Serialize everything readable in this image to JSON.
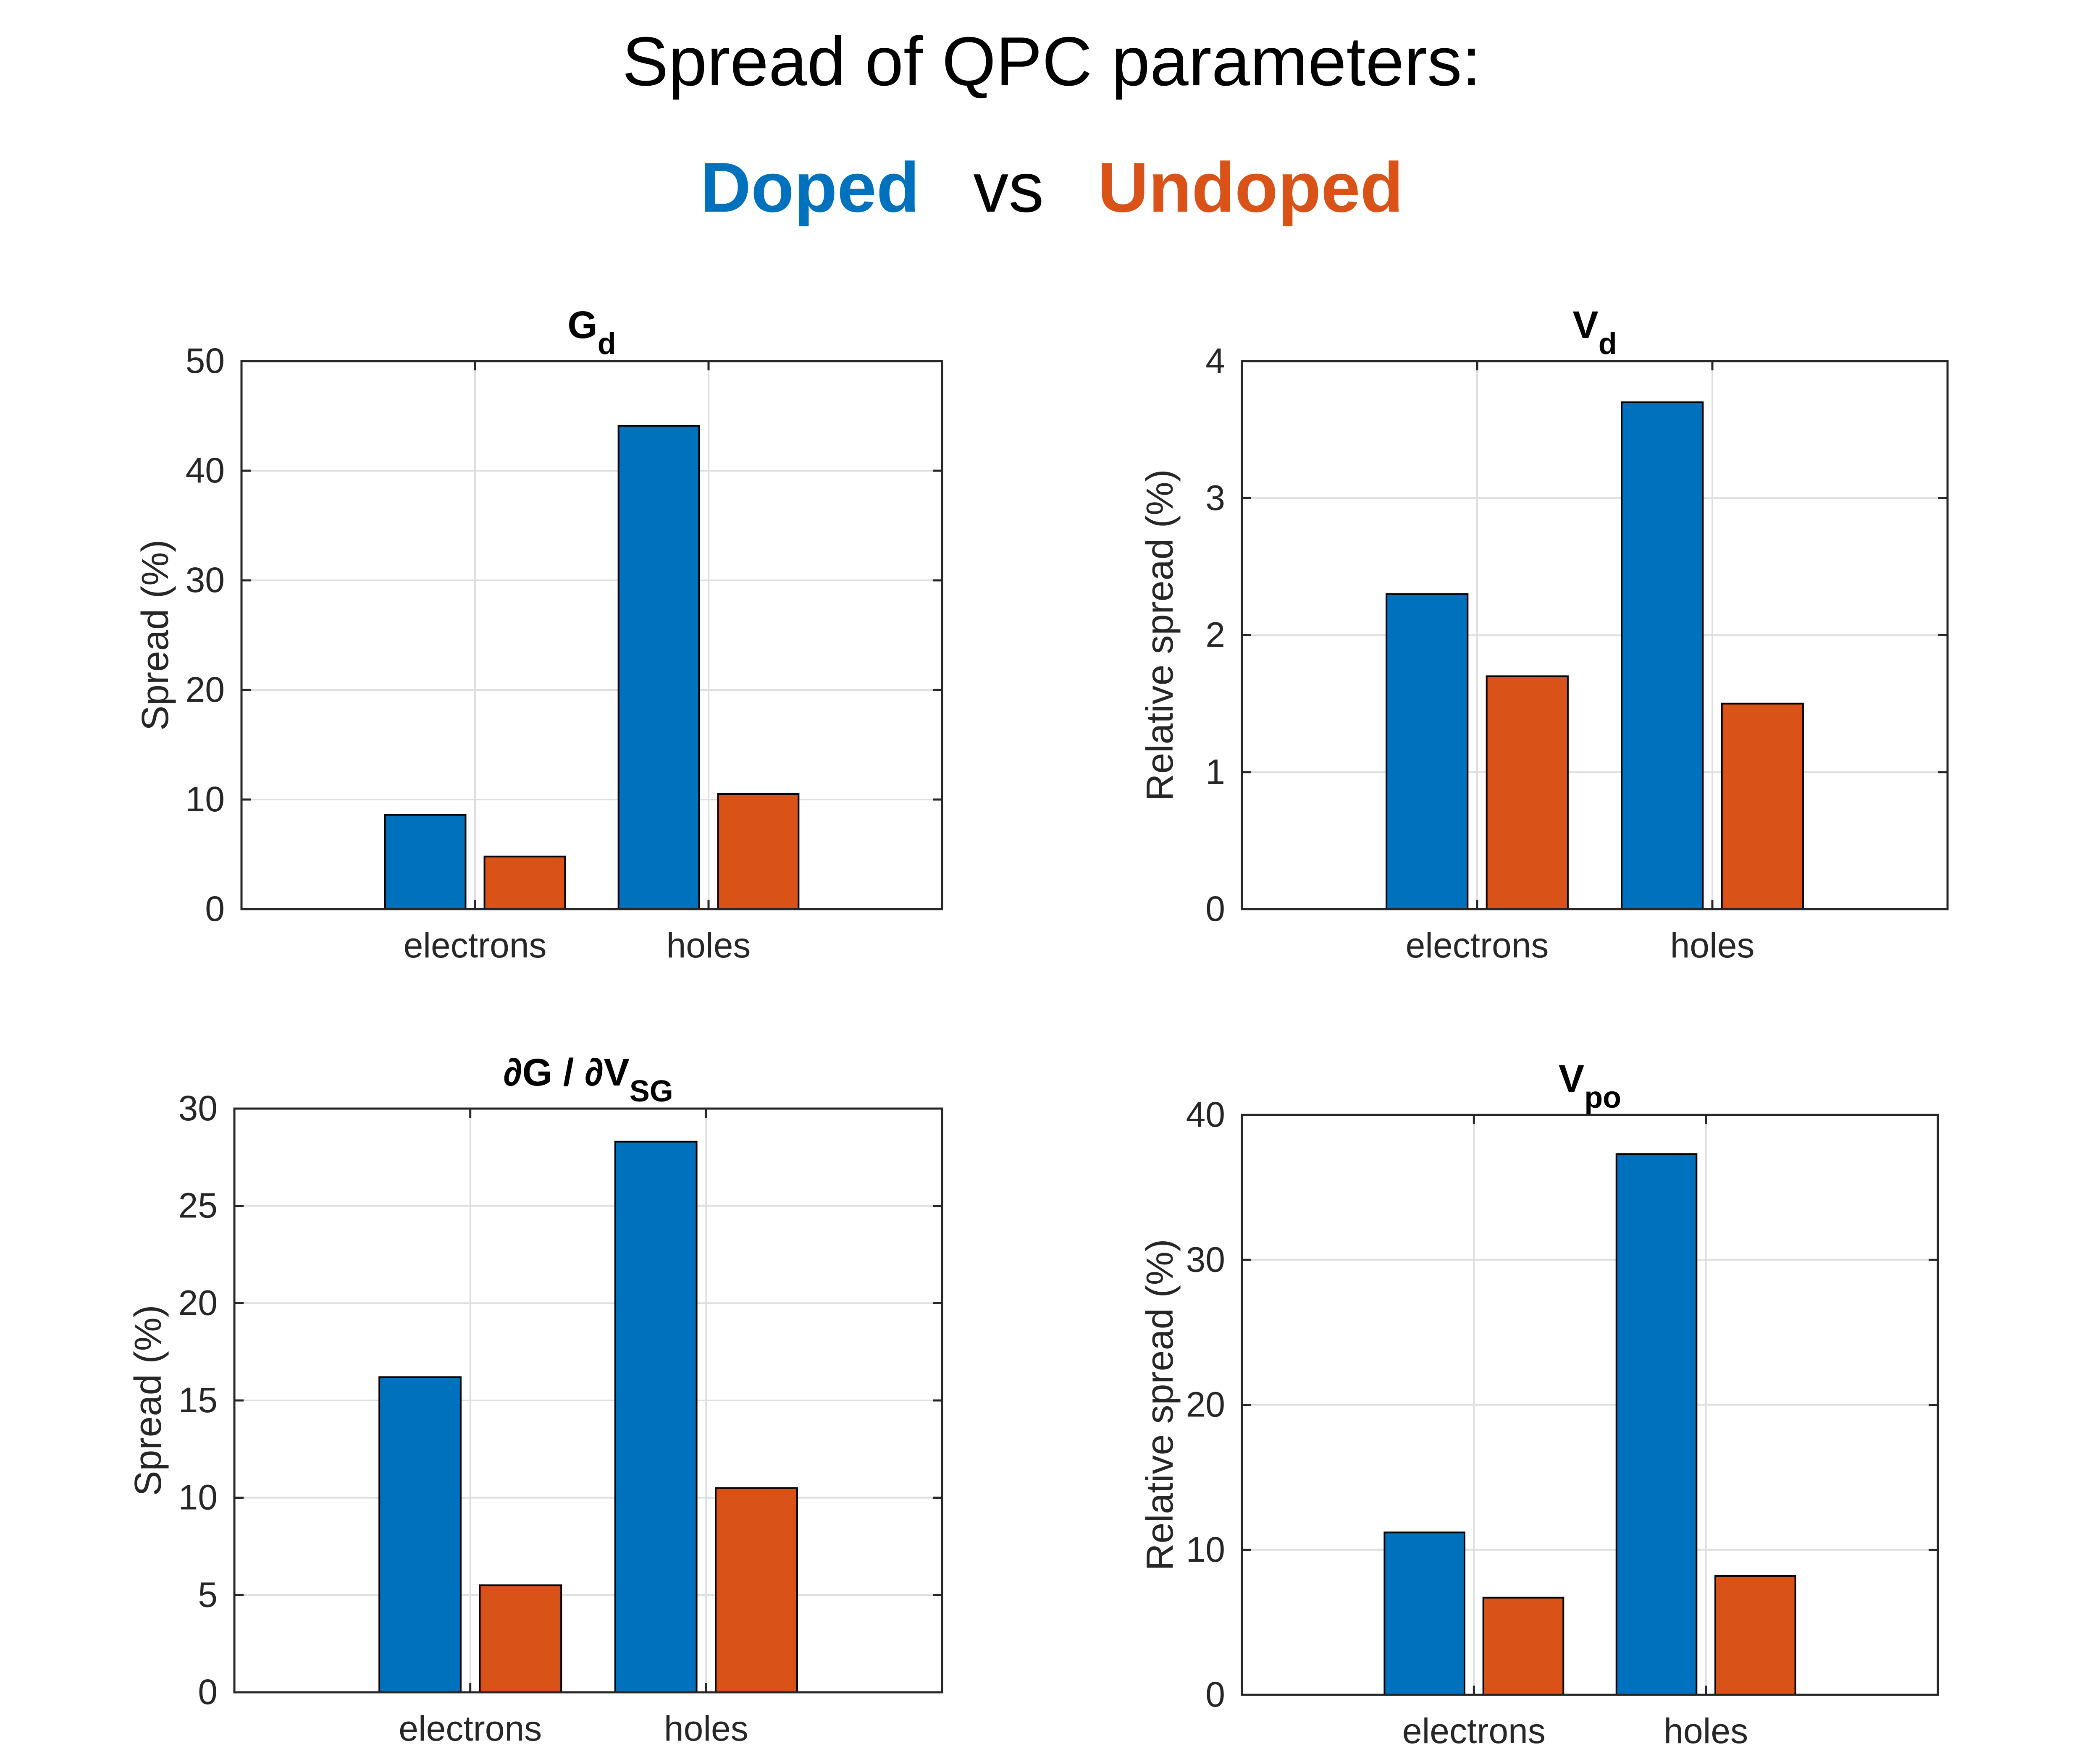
{
  "header": {
    "title": "Spread of QPC parameters:",
    "doped": "Doped",
    "vs": "vs",
    "undoped": "Undoped"
  },
  "colors": {
    "doped": "#0072BD",
    "undoped": "#D95319"
  },
  "chart_data": [
    {
      "type": "bar",
      "title": "G",
      "title_sub": "d",
      "categories": [
        "electrons",
        "holes"
      ],
      "series": [
        {
          "name": "Doped",
          "values": [
            8.6,
            44.1
          ]
        },
        {
          "name": "Undoped",
          "values": [
            4.8,
            10.5
          ]
        }
      ],
      "ylabel": "Spread (%)",
      "xlabel": "",
      "ylim": [
        0,
        50
      ],
      "yticks": [
        "0",
        "10",
        "20",
        "30",
        "40",
        "50"
      ],
      "grid": true
    },
    {
      "type": "bar",
      "title": "V",
      "title_sub": "d",
      "categories": [
        "electrons",
        "holes"
      ],
      "series": [
        {
          "name": "Doped",
          "values": [
            2.3,
            3.7
          ]
        },
        {
          "name": "Undoped",
          "values": [
            1.7,
            1.5
          ]
        }
      ],
      "ylabel": "Relative spread (%)",
      "xlabel": "",
      "ylim": [
        0,
        4
      ],
      "yticks": [
        "0",
        "1",
        "2",
        "3",
        "4"
      ],
      "grid": true
    },
    {
      "type": "bar",
      "title": "∂G / ∂V",
      "title_sub": "SG",
      "categories": [
        "electrons",
        "holes"
      ],
      "series": [
        {
          "name": "Doped",
          "values": [
            16.2,
            28.3
          ]
        },
        {
          "name": "Undoped",
          "values": [
            5.5,
            10.5
          ]
        }
      ],
      "ylabel": "Spread (%)",
      "xlabel": "",
      "ylim": [
        0,
        30
      ],
      "yticks": [
        "0",
        "5",
        "10",
        "15",
        "20",
        "25",
        "30"
      ],
      "grid": true
    },
    {
      "type": "bar",
      "title": "V",
      "title_sub": "po",
      "categories": [
        "electrons",
        "holes"
      ],
      "series": [
        {
          "name": "Doped",
          "values": [
            11.2,
            37.3
          ]
        },
        {
          "name": "Undoped",
          "values": [
            6.7,
            8.2
          ]
        }
      ],
      "ylabel": "Relative spread (%)",
      "xlabel": "",
      "ylim": [
        0,
        40
      ],
      "yticks": [
        "0",
        "10",
        "20",
        "30",
        "40"
      ],
      "grid": true
    }
  ]
}
